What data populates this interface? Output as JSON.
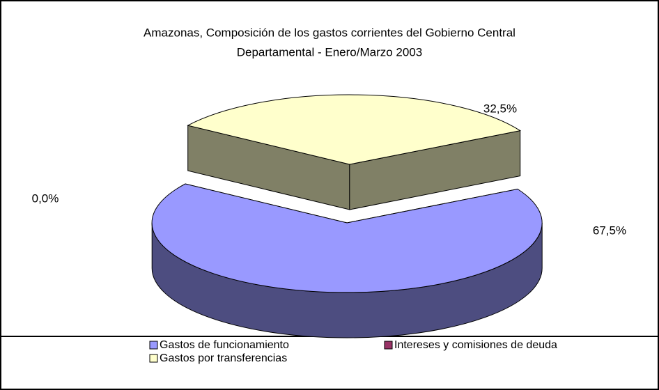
{
  "chart_data": {
    "type": "pie3d",
    "title": [
      "Amazonas, Composición de los gastos corrientes del Gobierno Central",
      "Departamental - Enero/Marzo  2003"
    ],
    "categories": [
      "Gastos de funcionamiento",
      "Intereses y comisiones de deuda",
      "Gastos por transferencias"
    ],
    "values": [
      67.5,
      0.0,
      32.5
    ],
    "value_labels": [
      "67,5%",
      "0,0%",
      "32,5%"
    ],
    "colors": [
      "#9999ff",
      "#993366",
      "#ffffcc"
    ],
    "legend": "bottom"
  }
}
